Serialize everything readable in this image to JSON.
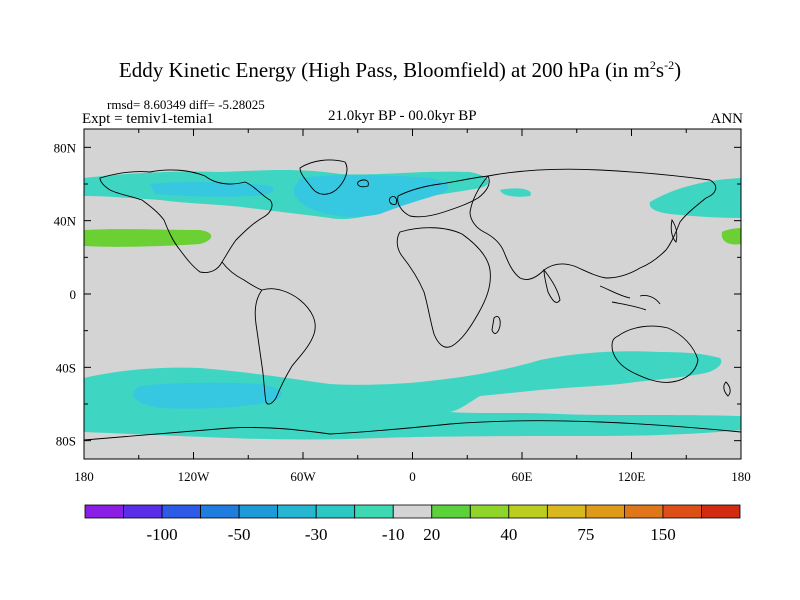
{
  "title": {
    "main": "Eddy Kinetic Energy (High Pass, Bloomfield) at 200 hPa (in m",
    "sup1": "2",
    "mid": "s",
    "sup2": "-2",
    "end": ")"
  },
  "stats": "rmsd= 8.60349 diff= -5.28025",
  "expt": "Expt = temiv1-temia1",
  "period": "21.0kyr BP - 00.0kyr BP",
  "season": "ANN",
  "map": {
    "lon_ticks": [
      "180",
      "120W",
      "60W",
      "0",
      "60E",
      "120E",
      "180"
    ],
    "lat_ticks": [
      "80N",
      "40N",
      "0",
      "40S",
      "80S"
    ],
    "land_color": "#d4d4d4",
    "field_colors": {
      "neg10": "#3ed6c3",
      "neg30": "#35c8e0",
      "pos20": "#6bd033"
    }
  },
  "colorbar": {
    "colors": [
      "#8a1ee4",
      "#5a2ee8",
      "#2d5ae6",
      "#1f7de0",
      "#1f9ad8",
      "#24b6d2",
      "#2cc8c6",
      "#3fd8b5",
      "#d4d4d4",
      "#5bd13a",
      "#8fd42a",
      "#bccd22",
      "#d8b81e",
      "#e09a1a",
      "#e0761a",
      "#dd4f16",
      "#d42a12"
    ],
    "labels": [
      "-100",
      "-50",
      "-30",
      "-10",
      "20",
      "40",
      "75",
      "150"
    ]
  }
}
